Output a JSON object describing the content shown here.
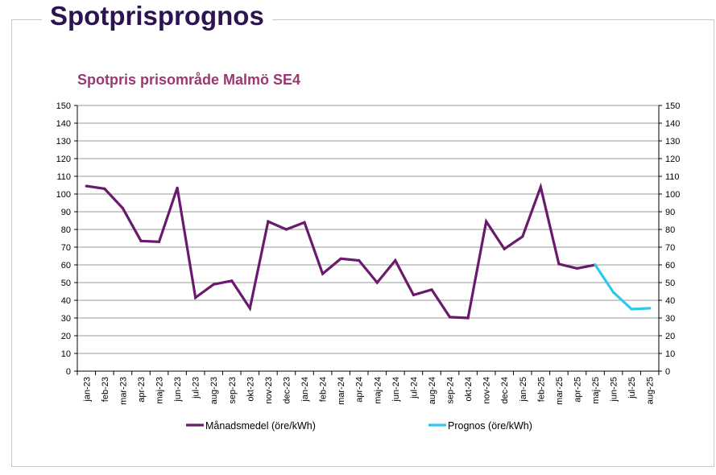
{
  "page": {
    "title": "Spotprisprognos"
  },
  "colors": {
    "title": "#2d1450",
    "chart_title": "#9b3873",
    "actual": "#6a1a6c",
    "forecast": "#2ec8ee",
    "grid": "#9a9a9a"
  },
  "chart_data": {
    "type": "line",
    "title": "Spotpris prisområde Malmö SE4",
    "xlabel": "",
    "ylabel": "",
    "ylim": [
      0,
      150
    ],
    "yticks": [
      0,
      10,
      20,
      30,
      40,
      50,
      60,
      70,
      80,
      90,
      100,
      110,
      120,
      130,
      140,
      150
    ],
    "secondary_y_axis": true,
    "grid": true,
    "legend_position": "bottom",
    "categories": [
      "jan-23",
      "feb-23",
      "mar-23",
      "apr-23",
      "maj-23",
      "jun-23",
      "jul-23",
      "aug-23",
      "sep-23",
      "okt-23",
      "nov-23",
      "dec-23",
      "jan-24",
      "feb-24",
      "mar-24",
      "apr-24",
      "maj-24",
      "jun-24",
      "jul-24",
      "aug-24",
      "sep-24",
      "okt-24",
      "nov-24",
      "dec-24",
      "jan-25",
      "feb-25",
      "mar-25",
      "apr-25",
      "maj-25",
      "jun-25",
      "jul-25",
      "aug-25"
    ],
    "series": [
      {
        "name": "Månadsmedel (öre/kWh)",
        "values": [
          104.5,
          103,
          92,
          73.5,
          73,
          103.5,
          41.5,
          49,
          51,
          35.5,
          84.5,
          80,
          84,
          55,
          63.5,
          62.5,
          50,
          62.5,
          43,
          46,
          30.5,
          30,
          84.5,
          69,
          76,
          104,
          60.5,
          58,
          60,
          null,
          null,
          null
        ]
      },
      {
        "name": "Prognos (öre/kWh)",
        "values": [
          null,
          null,
          null,
          null,
          null,
          null,
          null,
          null,
          null,
          null,
          null,
          null,
          null,
          null,
          null,
          null,
          null,
          null,
          null,
          null,
          null,
          null,
          null,
          null,
          null,
          null,
          null,
          null,
          60,
          44.5,
          35,
          35.5
        ]
      }
    ]
  }
}
